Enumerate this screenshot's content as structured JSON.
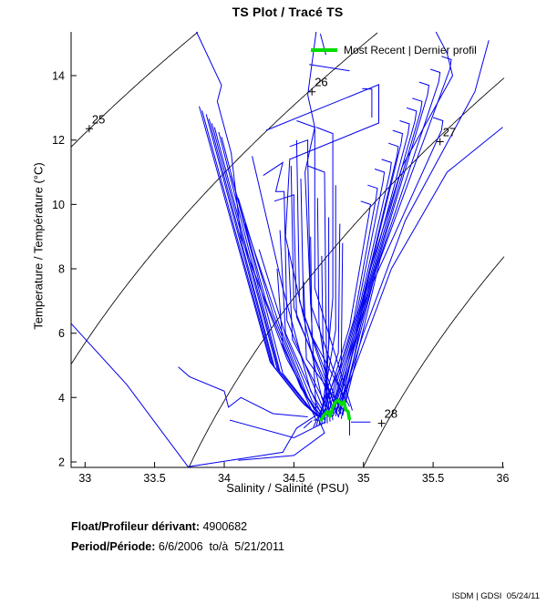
{
  "footer": {
    "float_label": "Float/Profileur dérivant:",
    "float_value": " 4900682",
    "period_label": "Period/Période:",
    "period_value": " 6/6/2006  to/à  5/21/2011",
    "stamp": "ISDM | GDSI  05/24/11"
  },
  "chart_data": {
    "type": "line",
    "title": "TS Plot / Tracé TS",
    "xlabel": "Salinity / Salinité (PSU)",
    "ylabel": "Temperature / Température (°C)",
    "xlim": [
      32.9,
      36.01
    ],
    "ylim": [
      1.83,
      15.36
    ],
    "xticks": [
      33,
      33.5,
      34,
      34.5,
      35,
      35.5,
      36
    ],
    "yticks": [
      2,
      4,
      6,
      8,
      10,
      12,
      14
    ],
    "grid": false,
    "box": false,
    "legend": {
      "label": "Most Recent | Dernier profil",
      "color": "#00dd00",
      "position": "top-right",
      "box": false
    },
    "colors": {
      "profiles": "#0000ee",
      "most_recent": "#00dd00",
      "contours": "#000000",
      "axis": "#000000"
    },
    "density_contours": {
      "note": "sigma-t isopycnals",
      "levels": [
        25,
        26,
        27,
        28
      ],
      "labels": [
        {
          "level": "25",
          "s": 33.03,
          "t": 12.35
        },
        {
          "level": "26",
          "s": 34.63,
          "t": 13.5
        },
        {
          "level": "27",
          "s": 35.55,
          "t": 11.95
        },
        {
          "level": "28",
          "s": 35.13,
          "t": 3.2
        }
      ]
    },
    "profiles": [
      [
        [
          34.38,
          8.0
        ],
        [
          34.42,
          5.6
        ],
        [
          34.66,
          3.3
        ]
      ],
      [
        [
          34.4,
          9.2
        ],
        [
          34.44,
          6.0
        ],
        [
          34.7,
          3.45
        ]
      ],
      [
        [
          34.28,
          10.9
        ],
        [
          34.42,
          11.3
        ],
        [
          34.37,
          10.4
        ],
        [
          34.43,
          10.4
        ],
        [
          34.45,
          6.4
        ],
        [
          34.72,
          3.55
        ]
      ],
      [
        [
          34.46,
          8.6
        ],
        [
          34.49,
          5.8
        ],
        [
          34.75,
          3.62
        ]
      ],
      [
        [
          34.48,
          11.2
        ],
        [
          34.5,
          6.8
        ],
        [
          34.78,
          3.7
        ]
      ],
      [
        [
          34.36,
          10.1
        ],
        [
          34.5,
          10.3
        ],
        [
          34.5,
          9.8
        ],
        [
          34.52,
          6.5
        ],
        [
          34.8,
          3.75
        ]
      ],
      [
        [
          34.52,
          12.0
        ],
        [
          34.54,
          7.0
        ],
        [
          34.82,
          3.4
        ]
      ],
      [
        [
          34.55,
          10.8
        ],
        [
          34.57,
          6.6
        ],
        [
          34.84,
          3.5
        ]
      ],
      [
        [
          34.57,
          7.6
        ],
        [
          34.59,
          5.2
        ],
        [
          34.86,
          3.58
        ]
      ],
      [
        [
          34.47,
          11.8
        ],
        [
          34.6,
          12.0
        ],
        [
          34.6,
          11.4
        ],
        [
          34.62,
          6.9
        ],
        [
          34.88,
          3.66
        ]
      ],
      [
        [
          34.62,
          9.0
        ],
        [
          34.63,
          5.9
        ],
        [
          34.9,
          3.72
        ]
      ],
      [
        [
          34.52,
          12.6
        ],
        [
          34.65,
          12.4
        ],
        [
          34.65,
          7.4
        ],
        [
          34.92,
          3.6
        ]
      ],
      [
        [
          34.67,
          10.2
        ],
        [
          34.68,
          6.3
        ],
        [
          34.78,
          3.3
        ]
      ],
      [
        [
          34.7,
          8.4
        ],
        [
          34.71,
          5.5
        ],
        [
          34.76,
          3.25
        ]
      ],
      [
        [
          34.6,
          11.2
        ],
        [
          34.72,
          11.0
        ],
        [
          34.73,
          6.7
        ],
        [
          34.74,
          3.2
        ]
      ],
      [
        [
          34.75,
          9.6
        ],
        [
          34.75,
          5.7
        ],
        [
          34.72,
          3.18
        ]
      ],
      [
        [
          34.66,
          12.4
        ],
        [
          34.78,
          12.2
        ],
        [
          34.78,
          7.1
        ],
        [
          34.7,
          3.15
        ]
      ],
      [
        [
          34.8,
          10.6
        ],
        [
          34.8,
          6.1
        ],
        [
          34.68,
          3.12
        ]
      ],
      [
        [
          34.83,
          9.4
        ],
        [
          34.82,
          5.4
        ],
        [
          34.66,
          3.1
        ]
      ],
      [
        [
          34.85,
          8.8
        ],
        [
          34.84,
          5.0
        ],
        [
          34.64,
          3.08
        ]
      ],
      [
        [
          34.98,
          10.1
        ],
        [
          35.05,
          10.0
        ],
        [
          35.04,
          9.7
        ],
        [
          34.9,
          6.2
        ],
        [
          34.7,
          3.3
        ]
      ],
      [
        [
          35.03,
          10.6
        ],
        [
          35.1,
          10.5
        ],
        [
          35.09,
          10.2
        ],
        [
          34.93,
          6.4
        ],
        [
          34.72,
          3.35
        ]
      ],
      [
        [
          35.08,
          11.1
        ],
        [
          35.15,
          11.0
        ],
        [
          35.14,
          10.7
        ],
        [
          34.95,
          6.6
        ],
        [
          34.74,
          3.4
        ]
      ],
      [
        [
          35.13,
          11.4
        ],
        [
          35.2,
          11.3
        ],
        [
          35.19,
          11.0
        ],
        [
          34.97,
          6.8
        ],
        [
          34.76,
          3.45
        ]
      ],
      [
        [
          35.18,
          11.9
        ],
        [
          35.25,
          11.8
        ],
        [
          35.24,
          11.5
        ],
        [
          34.99,
          7.0
        ],
        [
          34.78,
          3.5
        ]
      ],
      [
        [
          35.21,
          12.3
        ],
        [
          35.28,
          12.2
        ],
        [
          35.27,
          11.9
        ],
        [
          35.0,
          7.1
        ],
        [
          34.8,
          3.42
        ]
      ],
      [
        [
          35.26,
          12.6
        ],
        [
          35.33,
          12.5
        ],
        [
          35.32,
          12.2
        ],
        [
          35.02,
          7.3
        ],
        [
          34.82,
          3.38
        ]
      ],
      [
        [
          35.31,
          13.0
        ],
        [
          35.38,
          12.9
        ],
        [
          35.37,
          12.6
        ],
        [
          35.04,
          7.5
        ],
        [
          34.84,
          3.34
        ]
      ],
      [
        [
          35.35,
          13.3
        ],
        [
          35.42,
          13.2
        ],
        [
          35.41,
          12.9
        ],
        [
          35.06,
          7.7
        ],
        [
          34.77,
          3.55
        ]
      ],
      [
        [
          35.4,
          13.8
        ],
        [
          35.47,
          13.7
        ],
        [
          35.46,
          13.4
        ],
        [
          35.08,
          7.9
        ],
        [
          34.79,
          3.6
        ]
      ],
      [
        [
          35.48,
          14.2
        ],
        [
          35.55,
          14.1
        ],
        [
          35.54,
          13.8
        ],
        [
          35.1,
          8.1
        ],
        [
          34.81,
          3.65
        ]
      ],
      [
        [
          35.5,
          12.7
        ],
        [
          35.57,
          12.6
        ],
        [
          35.56,
          12.3
        ],
        [
          35.07,
          7.6
        ],
        [
          34.83,
          3.48
        ]
      ],
      [
        [
          35.56,
          14.6
        ],
        [
          35.63,
          14.5
        ],
        [
          35.62,
          14.2
        ],
        [
          35.12,
          8.3
        ],
        [
          34.85,
          3.44
        ]
      ],
      [
        [
          35.52,
          15.36
        ],
        [
          35.6,
          14.7
        ],
        [
          35.64,
          14.0
        ],
        [
          35.28,
          11.2
        ],
        [
          35.05,
          8.0
        ],
        [
          34.86,
          4.2
        ],
        [
          34.8,
          3.52
        ]
      ],
      [
        [
          35.9,
          15.1
        ],
        [
          35.8,
          13.5
        ],
        [
          35.3,
          9.5
        ],
        [
          35.0,
          6.0
        ],
        [
          34.82,
          3.56
        ]
      ],
      [
        [
          36.0,
          12.4
        ],
        [
          35.6,
          11.0
        ],
        [
          35.2,
          8.0
        ],
        [
          34.9,
          4.5
        ],
        [
          34.78,
          3.42
        ]
      ],
      [
        [
          33.82,
          13.05
        ],
        [
          34.33,
          5.1
        ],
        [
          34.55,
          3.9
        ],
        [
          34.66,
          3.45
        ]
      ],
      [
        [
          33.84,
          12.92
        ],
        [
          34.34,
          5.05
        ],
        [
          34.56,
          3.85
        ],
        [
          34.67,
          3.42
        ]
      ],
      [
        [
          33.87,
          12.8
        ],
        [
          34.35,
          5.0
        ],
        [
          34.57,
          3.8
        ],
        [
          34.68,
          3.4
        ]
      ],
      [
        [
          33.89,
          12.66
        ],
        [
          34.36,
          4.95
        ],
        [
          34.58,
          3.76
        ],
        [
          34.69,
          3.38
        ]
      ],
      [
        [
          33.91,
          12.52
        ],
        [
          34.38,
          4.9
        ],
        [
          34.6,
          3.72
        ],
        [
          34.7,
          3.36
        ]
      ],
      [
        [
          33.93,
          12.4
        ],
        [
          34.39,
          4.85
        ],
        [
          34.61,
          3.68
        ],
        [
          34.71,
          3.34
        ]
      ],
      [
        [
          33.96,
          12.25
        ],
        [
          34.4,
          4.8
        ],
        [
          34.62,
          3.64
        ],
        [
          34.72,
          3.32
        ]
      ],
      [
        [
          33.98,
          12.1
        ],
        [
          34.42,
          4.75
        ],
        [
          34.63,
          3.6
        ],
        [
          34.73,
          3.3
        ]
      ],
      [
        [
          34.05,
          10.9
        ],
        [
          34.3,
          7.0
        ],
        [
          34.55,
          4.3
        ],
        [
          34.67,
          3.5
        ]
      ],
      [
        [
          34.1,
          10.2
        ],
        [
          34.35,
          6.6
        ],
        [
          34.58,
          4.1
        ],
        [
          34.69,
          3.45
        ]
      ],
      [
        [
          34.15,
          9.4
        ],
        [
          34.4,
          6.2
        ],
        [
          34.6,
          4.0
        ],
        [
          34.7,
          3.4
        ]
      ],
      [
        [
          34.2,
          11.5
        ],
        [
          34.42,
          7.4
        ],
        [
          34.62,
          4.2
        ],
        [
          34.72,
          3.5
        ]
      ],
      [
        [
          34.25,
          8.6
        ],
        [
          34.45,
          5.8
        ],
        [
          34.63,
          3.9
        ],
        [
          34.73,
          3.35
        ]
      ],
      [
        [
          32.9,
          6.3
        ],
        [
          33.3,
          4.4
        ],
        [
          33.74,
          1.85
        ],
        [
          34.15,
          2.12
        ],
        [
          34.42,
          2.3
        ],
        [
          34.52,
          3.05
        ],
        [
          34.66,
          3.45
        ]
      ],
      [
        [
          33.8,
          15.36
        ],
        [
          33.98,
          13.7
        ],
        [
          33.95,
          13.2
        ],
        [
          34.05,
          11.6
        ],
        [
          34.12,
          9.0
        ],
        [
          34.45,
          5.2
        ],
        [
          34.65,
          3.6
        ]
      ],
      [
        [
          34.3,
          12.3
        ],
        [
          35.11,
          13.72
        ],
        [
          35.11,
          12.53
        ],
        [
          34.47,
          11.4
        ],
        [
          34.44,
          9.0
        ],
        [
          34.7,
          4.0
        ],
        [
          34.75,
          3.4
        ]
      ],
      [
        [
          33.67,
          4.95
        ],
        [
          33.75,
          4.65
        ],
        [
          34.0,
          4.2
        ],
        [
          34.03,
          3.7
        ],
        [
          34.12,
          4.0
        ],
        [
          34.35,
          3.5
        ],
        [
          34.6,
          3.4
        ]
      ],
      [
        [
          34.1,
          2.05
        ],
        [
          34.5,
          2.2
        ],
        [
          34.72,
          2.9
        ],
        [
          34.68,
          3.3
        ]
      ],
      [
        [
          34.04,
          3.3
        ],
        [
          34.5,
          2.75
        ],
        [
          34.73,
          3.25
        ]
      ],
      [
        [
          34.61,
          14.35
        ],
        [
          34.9,
          14.15
        ]
      ],
      [
        [
          34.69,
          15.3
        ],
        [
          34.73,
          14.65
        ]
      ],
      [
        [
          34.99,
          13.6
        ],
        [
          35.06,
          13.58
        ],
        [
          35.06,
          12.7
        ]
      ],
      [
        [
          34.66,
          15.36
        ],
        [
          34.6,
          13.4
        ],
        [
          34.65,
          12.4
        ],
        [
          34.58,
          11.0
        ],
        [
          34.62,
          7.0
        ],
        [
          34.66,
          3.55
        ]
      ],
      [
        [
          34.91,
          3.24
        ],
        [
          35.05,
          3.24
        ]
      ],
      [
        [
          34.9,
          3.47
        ],
        [
          34.9,
          2.82
        ]
      ],
      [
        [
          34.64,
          3.3
        ],
        [
          34.7,
          3.3
        ]
      ],
      [
        [
          34.57,
          3.05
        ],
        [
          34.63,
          3.28
        ]
      ]
    ],
    "most_recent_profile": [
      [
        34.69,
        3.27
      ],
      [
        34.72,
        3.47
      ],
      [
        34.74,
        3.56
      ],
      [
        34.76,
        3.42
      ],
      [
        34.78,
        3.7
      ],
      [
        34.8,
        3.87
      ],
      [
        34.82,
        3.92
      ],
      [
        34.84,
        3.78
      ],
      [
        34.86,
        3.87
      ],
      [
        34.87,
        3.64
      ],
      [
        34.89,
        3.56
      ],
      [
        34.9,
        3.3
      ]
    ]
  }
}
